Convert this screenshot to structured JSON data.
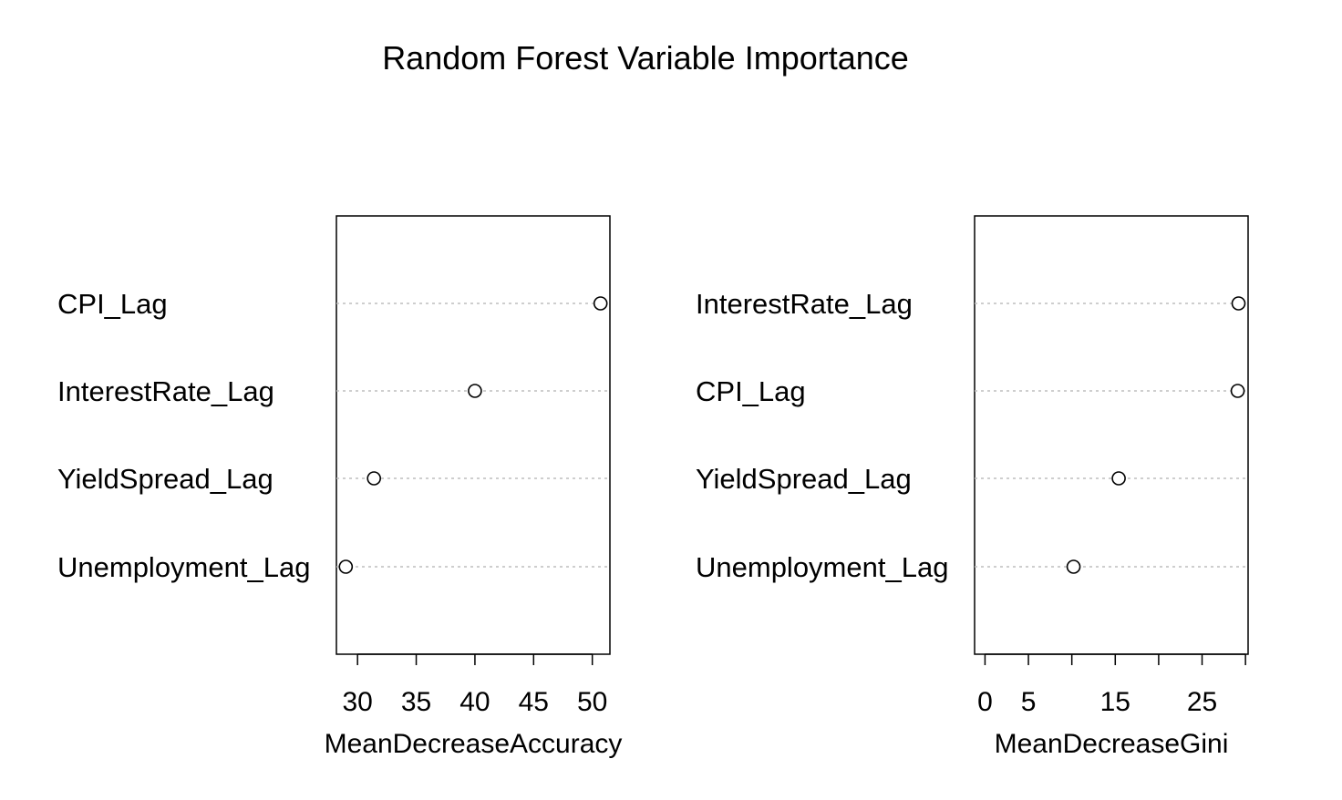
{
  "chart_data": {
    "type": "scatter",
    "title": "Random Forest Variable Importance",
    "panels": [
      {
        "xlabel": "MeanDecreaseAccuracy",
        "variables": [
          "CPI_Lag",
          "InterestRate_Lag",
          "YieldSpread_Lag",
          "Unemployment_Lag"
        ],
        "values": [
          50.7,
          40.0,
          31.4,
          29.0
        ],
        "xlim": [
          28.2,
          51.5
        ],
        "ticks": [
          30,
          35,
          40,
          45,
          50
        ],
        "tick_labels": [
          "30",
          "35",
          "40",
          "45",
          "50"
        ]
      },
      {
        "xlabel": "MeanDecreaseGini",
        "variables": [
          "InterestRate_Lag",
          "CPI_Lag",
          "YieldSpread_Lag",
          "Unemployment_Lag"
        ],
        "values": [
          29.2,
          29.1,
          15.4,
          10.2
        ],
        "xlim": [
          -1.2,
          30.3
        ],
        "ticks": [
          0,
          5,
          10,
          15,
          20,
          25,
          30
        ],
        "tick_labels": [
          "0",
          "5",
          "",
          "15",
          "",
          "25",
          ""
        ]
      }
    ],
    "point_style": "open-circle",
    "gridlines": "dotted-horizontal"
  },
  "colors": {
    "point_stroke": "#000000",
    "gridline": "#bebebe",
    "frame": "#000000"
  }
}
